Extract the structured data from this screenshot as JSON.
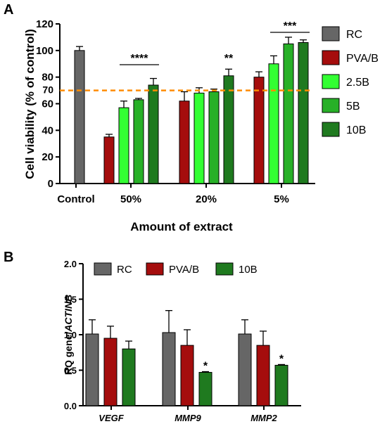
{
  "chart_data": [
    {
      "panel": "A",
      "type": "bar",
      "xlabel": "Amount of extract",
      "ylabel": "Cell viability (% of control)",
      "ylim": [
        0,
        120
      ],
      "yticks": [
        0,
        20,
        40,
        60,
        80,
        100,
        120
      ],
      "extra_ytick": "70",
      "reference_line": {
        "y": 70,
        "color": "#ff8c00",
        "style": "dashed"
      },
      "categories": [
        "Control",
        "50%",
        "20%",
        "5%"
      ],
      "series": [
        {
          "name": "RC",
          "color": "#666666",
          "values": [
            100,
            null,
            null,
            null
          ],
          "errors": [
            3,
            null,
            null,
            null
          ]
        },
        {
          "name": "PVA/B",
          "color": "#a50d0d",
          "values": [
            null,
            35,
            62,
            80
          ],
          "errors": [
            null,
            2,
            7,
            4
          ]
        },
        {
          "name": "2.5B",
          "color": "#33ff33",
          "values": [
            null,
            57,
            68,
            90
          ],
          "errors": [
            null,
            5,
            4,
            6
          ]
        },
        {
          "name": "5B",
          "color": "#27b027",
          "values": [
            null,
            63,
            69,
            105
          ],
          "errors": [
            null,
            1,
            2,
            5
          ]
        },
        {
          "name": "10B",
          "color": "#1f7a1f",
          "values": [
            null,
            74,
            81,
            106
          ],
          "errors": [
            null,
            5,
            5,
            2
          ]
        }
      ],
      "significance": [
        {
          "label": "****",
          "category": "50%",
          "bracket": true
        },
        {
          "label": "**",
          "category": "20%",
          "series": "10B"
        },
        {
          "label": "***",
          "category": "5%",
          "bracket": true
        }
      ],
      "legend_position": "right"
    },
    {
      "panel": "B",
      "type": "bar",
      "xlabel": "",
      "ylabel_prefix": "RQ gene/",
      "ylabel_gene": "ACTINB",
      "ylim": [
        0,
        2.0
      ],
      "yticks": [
        "0.0",
        "0.5",
        "1.0",
        "1.5",
        "2.0"
      ],
      "categories": [
        "VEGF",
        "MMP9",
        "MMP2"
      ],
      "series": [
        {
          "name": "RC",
          "color": "#666666",
          "values": [
            1.01,
            1.03,
            1.01
          ],
          "errors": [
            0.2,
            0.31,
            0.2
          ]
        },
        {
          "name": "PVA/B",
          "color": "#a50d0d",
          "values": [
            0.95,
            0.85,
            0.85
          ],
          "errors": [
            0.17,
            0.22,
            0.2
          ]
        },
        {
          "name": "10B",
          "color": "#1f7a1f",
          "values": [
            0.8,
            0.47,
            0.57
          ],
          "errors": [
            0.11,
            0.01,
            0.01
          ]
        }
      ],
      "significance": [
        {
          "label": "*",
          "category": "MMP9",
          "series": "10B"
        },
        {
          "label": "*",
          "category": "MMP2",
          "series": "10B"
        }
      ],
      "legend_position": "top"
    }
  ]
}
